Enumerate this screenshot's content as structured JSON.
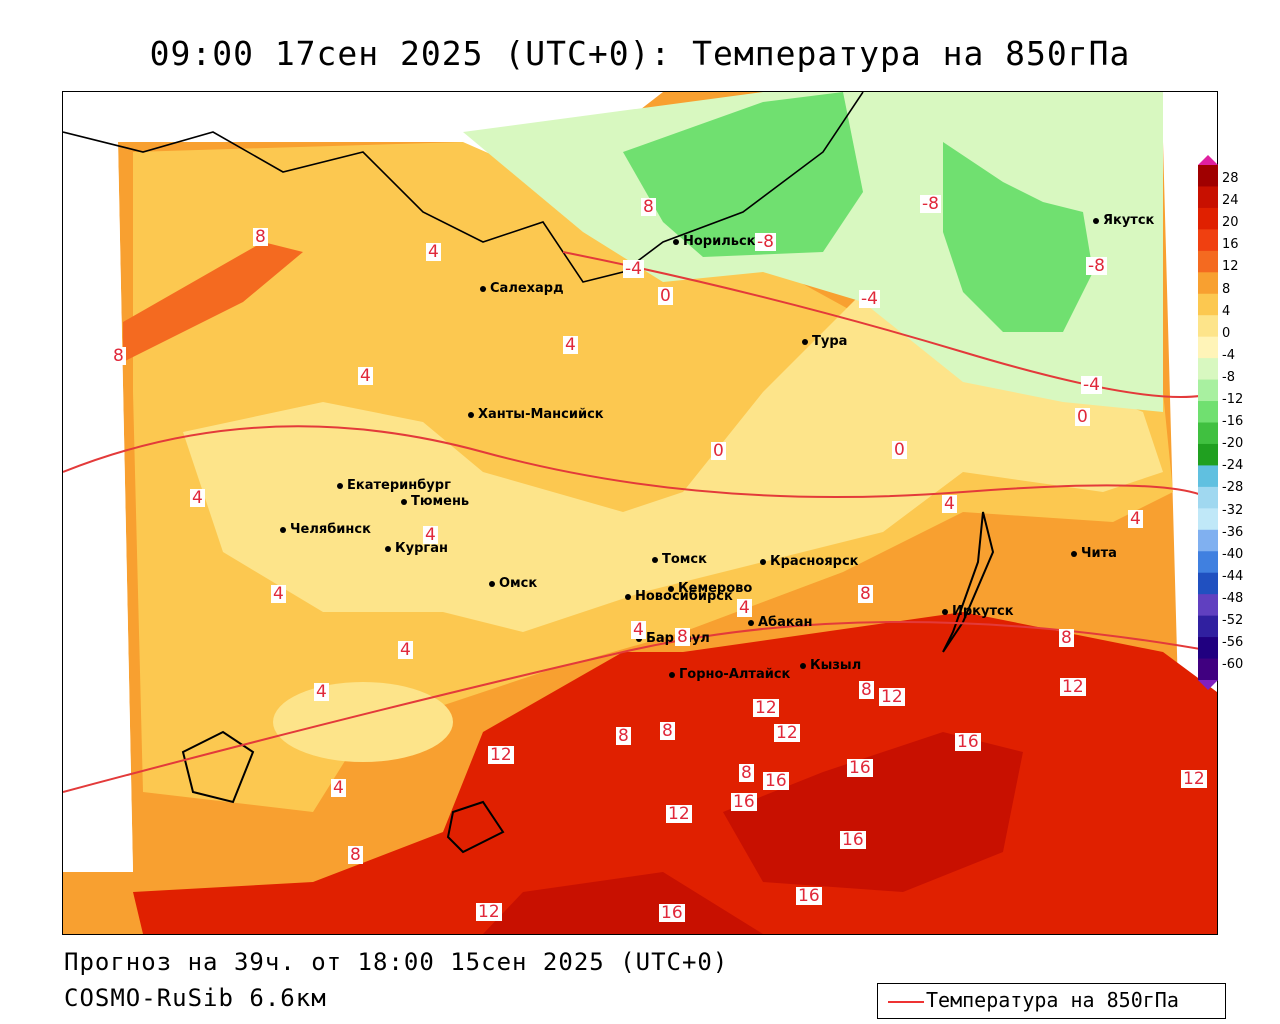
{
  "title": "09:00 17сен 2025 (UTC+0): Температура на 850гПа",
  "footer": {
    "forecast": "Прогноз на 39ч. от 18:00 15сен 2025 (UTC+0)",
    "model": "COSMO-RuSib 6.6км"
  },
  "legend": {
    "label": "Температура на 850гПа",
    "line_color": "#e33a3a"
  },
  "colorbar": {
    "labels": [
      "28",
      "24",
      "20",
      "16",
      "12",
      "8",
      "4",
      "0",
      "-4",
      "-8",
      "-12",
      "-16",
      "-20",
      "-24",
      "-28",
      "-32",
      "-36",
      "-40",
      "-44",
      "-48",
      "-52",
      "-56",
      "-60"
    ],
    "colors": [
      "#a00000",
      "#c81000",
      "#e02000",
      "#f04010",
      "#f46a20",
      "#f8a030",
      "#fcc850",
      "#fde48a",
      "#fff4b8",
      "#d8f8c0",
      "#a8f0a0",
      "#70e070",
      "#40c040",
      "#20a020",
      "#60c0e0",
      "#a0d8f0",
      "#c0e8f8",
      "#80b0f0",
      "#4080e0",
      "#2050c0",
      "#6040c0",
      "#3020a0",
      "#200080",
      "#400080"
    ]
  },
  "cities": [
    {
      "name": "Норильск"
    },
    {
      "name": "Якутск"
    },
    {
      "name": "Салехард"
    },
    {
      "name": "Тура"
    },
    {
      "name": "Ханты-Мансийск"
    },
    {
      "name": "Екатеринбург"
    },
    {
      "name": "Тюмень"
    },
    {
      "name": "Челябинск"
    },
    {
      "name": "Курган"
    },
    {
      "name": "Омск"
    },
    {
      "name": "Новосибирск"
    },
    {
      "name": "Томск"
    },
    {
      "name": "Кемерово"
    },
    {
      "name": "Красноярск"
    },
    {
      "name": "Абакан"
    },
    {
      "name": "Барнаул"
    },
    {
      "name": "Горно-Алтайск"
    },
    {
      "name": "Кызыл"
    },
    {
      "name": "Иркутск"
    },
    {
      "name": "Чита"
    }
  ],
  "contour_labels": [
    "8",
    "-8",
    "-8",
    "-8",
    "-4",
    "0",
    "-4",
    "-4",
    "0",
    "0",
    "0",
    "8",
    "4",
    "4",
    "4",
    "4",
    "8",
    "4",
    "4",
    "4",
    "4",
    "4",
    "4",
    "4",
    "4",
    "4",
    "8",
    "8",
    "8",
    "8",
    "8",
    "12",
    "12",
    "12",
    "12",
    "16",
    "16",
    "16",
    "16",
    "16",
    "16",
    "12",
    "12",
    "12",
    "16",
    "8",
    "8",
    "8",
    "12"
  ]
}
